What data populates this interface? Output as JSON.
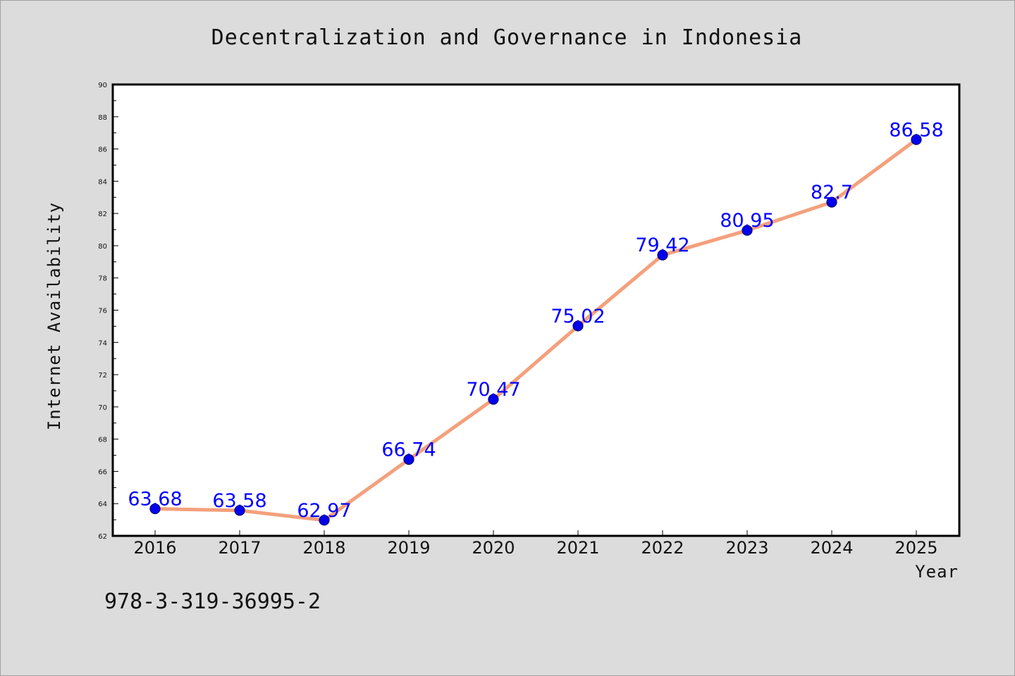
{
  "chart_data": {
    "type": "line",
    "title": "Decentralization and Governance in Indonesia",
    "xlabel": "Year",
    "ylabel": "Internet Availability",
    "categories": [
      "2016",
      "2017",
      "2018",
      "2019",
      "2020",
      "2021",
      "2022",
      "2023",
      "2024",
      "2025"
    ],
    "series": [
      {
        "values": [
          63.68,
          63.58,
          62.97,
          66.74,
          70.47,
          75.02,
          79.42,
          80.95,
          82.7,
          86.58
        ],
        "labels": [
          "63.68",
          "63.58",
          "62.97",
          "66.74",
          "70.47",
          "75.02",
          "79.42",
          "80.95",
          "82.7",
          "86.58"
        ]
      }
    ],
    "ylim": [
      62,
      90
    ],
    "yticks": [
      "62",
      "64",
      "66",
      "68",
      "70",
      "72",
      "74",
      "76",
      "78",
      "80",
      "82",
      "84",
      "86",
      "88",
      "90"
    ],
    "grid": false,
    "line_color": "#f4a07c",
    "marker_color": "#0000ee",
    "label_color": "#0000ff",
    "background_color": "#dcdcdc",
    "plot_background": "#ffffff"
  },
  "footer": {
    "isbn": "978-3-319-36995-2"
  }
}
